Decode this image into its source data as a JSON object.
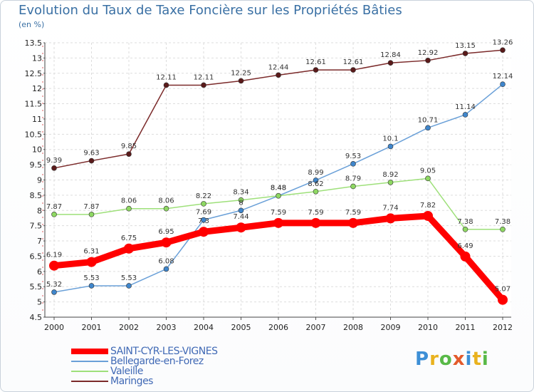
{
  "title": "Evolution du Taux de Taxe Foncière sur les Propriétés Bâties",
  "subtitle": "(en %)",
  "logo": {
    "text": "Proxiti",
    "colors": [
      "#3d8fd6",
      "#e9b21e",
      "#58b947",
      "#e35a2b",
      "#3d8fd6",
      "#e9b21e",
      "#58b947"
    ]
  },
  "chart_data": {
    "type": "line",
    "title": "Evolution du Taux de Taxe Foncière sur les Propriétés Bâties",
    "ylabel": "(en %)",
    "ylim": [
      4.5,
      13.5
    ],
    "yticks": [
      "4.5",
      "5",
      "5.5",
      "6",
      "6.5",
      "7",
      "7.5",
      "8",
      "8.5",
      "9",
      "9.5",
      "10",
      "10.5",
      "11",
      "11.5",
      "12",
      "12.5",
      "13",
      "13.5"
    ],
    "x": [
      "2000",
      "2001",
      "2002",
      "2003",
      "2004",
      "2005",
      "2006",
      "2007",
      "2008",
      "2009",
      "2010",
      "2011",
      "2012"
    ],
    "grid": true,
    "legend_position": "bottom-left",
    "series": [
      {
        "name": "Maringes",
        "color": "#7b2a2a",
        "values": [
          9.39,
          9.63,
          9.85,
          12.11,
          12.11,
          12.25,
          12.44,
          12.61,
          12.61,
          12.84,
          12.92,
          13.15,
          13.26
        ],
        "labels": [
          "9.39",
          "9.63",
          "9.85",
          "12.11",
          "12.11",
          "12.25",
          "12.44",
          "12.61",
          "12.61",
          "12.84",
          "12.92",
          "13.15",
          "13.26"
        ]
      },
      {
        "name": "Bellegarde-en-Forez",
        "color": "#6aa0d8",
        "values": [
          5.32,
          5.53,
          5.53,
          6.08,
          7.69,
          8.0,
          8.48,
          8.99,
          9.53,
          10.1,
          10.71,
          11.14,
          12.14
        ],
        "labels": [
          "5.32",
          "5.53",
          "5.53",
          "6.08",
          "7.69",
          "8",
          "8.48",
          "8.99",
          "9.53",
          "10.1",
          "10.71",
          "11.14",
          "12.14"
        ]
      },
      {
        "name": "Valeille",
        "color": "#9ee07a",
        "values": [
          7.87,
          7.87,
          8.06,
          8.06,
          8.22,
          8.34,
          8.48,
          8.62,
          8.79,
          8.92,
          9.05,
          7.38,
          7.38
        ],
        "labels": [
          "7.87",
          "7.87",
          "8.06",
          "8.06",
          "8.22",
          "8.34",
          "8.48",
          "8.62",
          "8.79",
          "8.92",
          "9.05",
          "7.38",
          "7.38"
        ]
      },
      {
        "name": "SAINT-CYR-LES-VIGNES",
        "color": "#ff0000",
        "values": [
          6.19,
          6.31,
          6.75,
          6.95,
          7.3,
          7.44,
          7.59,
          7.59,
          7.59,
          7.74,
          7.82,
          6.49,
          5.07
        ],
        "labels": [
          "6.19",
          "6.31",
          "6.75",
          "6.95",
          "7.3",
          "7.44",
          "7.59",
          "7.59",
          "7.59",
          "7.74",
          "7.82",
          "6.49",
          "5.07"
        ]
      }
    ],
    "legend_order": [
      "SAINT-CYR-LES-VIGNES",
      "Bellegarde-en-Forez",
      "Valeille",
      "Maringes"
    ]
  }
}
